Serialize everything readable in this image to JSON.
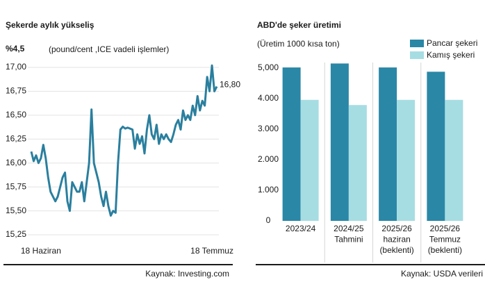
{
  "chart_data": [
    {
      "type": "line",
      "title": "Şekerde aylık yükseliş",
      "highlight": "%4,5",
      "subtitle": "(pound/cent ,ICE vadeli işlemler)",
      "categories": [
        null,
        null,
        null,
        null,
        "18 Haziran",
        null,
        null,
        null,
        null,
        null,
        null,
        null,
        null,
        null,
        null,
        null,
        null,
        null,
        null,
        null,
        null,
        null,
        null,
        null,
        null,
        null,
        null,
        null,
        null,
        null,
        null,
        null,
        null,
        null,
        null,
        null,
        null,
        null,
        null,
        null,
        null,
        null,
        null,
        null,
        null,
        null,
        null,
        null,
        null,
        null,
        null,
        null,
        null,
        null,
        null,
        null,
        null,
        null,
        null,
        null,
        null,
        null,
        null,
        null,
        null,
        null,
        null,
        null,
        null,
        null,
        null,
        null,
        null,
        null,
        null,
        "18 Temmuz",
        null,
        null
      ],
      "values": [
        16.12,
        16.02,
        16.08,
        16.0,
        16.05,
        16.19,
        16.05,
        15.85,
        15.7,
        15.65,
        15.6,
        15.65,
        15.75,
        15.85,
        15.9,
        15.6,
        15.5,
        15.8,
        15.75,
        15.7,
        15.7,
        15.8,
        15.6,
        15.8,
        16.0,
        16.56,
        16.0,
        15.9,
        15.8,
        15.65,
        15.55,
        15.7,
        15.55,
        15.45,
        15.5,
        15.48,
        16.0,
        16.35,
        16.38,
        16.36,
        16.37,
        16.36,
        16.35,
        16.15,
        16.3,
        16.2,
        16.28,
        16.1,
        16.35,
        16.5,
        16.3,
        16.25,
        16.4,
        16.2,
        16.3,
        16.25,
        16.3,
        16.25,
        16.22,
        16.3,
        16.4,
        16.45,
        16.35,
        16.55,
        16.45,
        16.5,
        16.45,
        16.6,
        16.5,
        16.7,
        16.55,
        16.65,
        16.6,
        16.9,
        16.75,
        17.02,
        16.75,
        16.8
      ],
      "value_labels": [
        null,
        null,
        null,
        null,
        null,
        null,
        null,
        null,
        null,
        null,
        null,
        null,
        null,
        null,
        null,
        null,
        null,
        null,
        null,
        null,
        null,
        null,
        null,
        null,
        null,
        null,
        null,
        null,
        null,
        null,
        null,
        null,
        null,
        null,
        null,
        null,
        null,
        null,
        null,
        null,
        null,
        null,
        null,
        null,
        null,
        null,
        null,
        null,
        null,
        null,
        null,
        null,
        null,
        null,
        null,
        null,
        null,
        null,
        null,
        null,
        null,
        null,
        null,
        null,
        null,
        null,
        null,
        null,
        null,
        null,
        null,
        null,
        null,
        null,
        null,
        null,
        null,
        "16,80"
      ],
      "color": "#2a7f9e",
      "ylim": [
        15.2,
        17.05
      ],
      "yticks": [
        {
          "value": 15.25,
          "label": "15,25"
        },
        {
          "value": 15.5,
          "label": "15,50"
        },
        {
          "value": 15.75,
          "label": "15,75"
        },
        {
          "value": 16,
          "label": "16,00"
        },
        {
          "value": 16.25,
          "label": "16,25"
        },
        {
          "value": 16.5,
          "label": "16,50"
        },
        {
          "value": 16.75,
          "label": "16,75"
        },
        {
          "value": 17,
          "label": "17,00"
        }
      ],
      "grid": true,
      "source": "Kaynak: Investing.com"
    },
    {
      "type": "bar",
      "title": "ABD'de şeker üretimi",
      "subtitle": "(Üretim 1000 kısa ton)",
      "categories": [
        [
          "2023/24"
        ],
        [
          "2024/25",
          "Tahmini"
        ],
        [
          "2025/26",
          "haziran",
          "(beklenti)"
        ],
        [
          "2025/26",
          "Temmuz",
          "(beklenti)"
        ]
      ],
      "series": [
        {
          "name": "Pancar şekeri",
          "color": "#2a87a6",
          "values": [
            5020,
            5150,
            5020,
            4880
          ]
        },
        {
          "name": "Kamış şekeri",
          "color": "#a6dde3",
          "values": [
            3960,
            3790,
            3960,
            3960
          ]
        }
      ],
      "ylim": [
        0,
        5250
      ],
      "yticks": [
        0,
        {
          "value": 1000,
          "label": "1.000"
        },
        {
          "value": 2000,
          "label": "2.000"
        },
        {
          "value": 3000,
          "label": "3.000"
        },
        {
          "value": 4000,
          "label": "4.000"
        },
        {
          "value": 5000,
          "label": "5,000"
        }
      ],
      "grid": false,
      "legend": "top-right",
      "source": "Kaynak:  USDA verileri"
    }
  ]
}
